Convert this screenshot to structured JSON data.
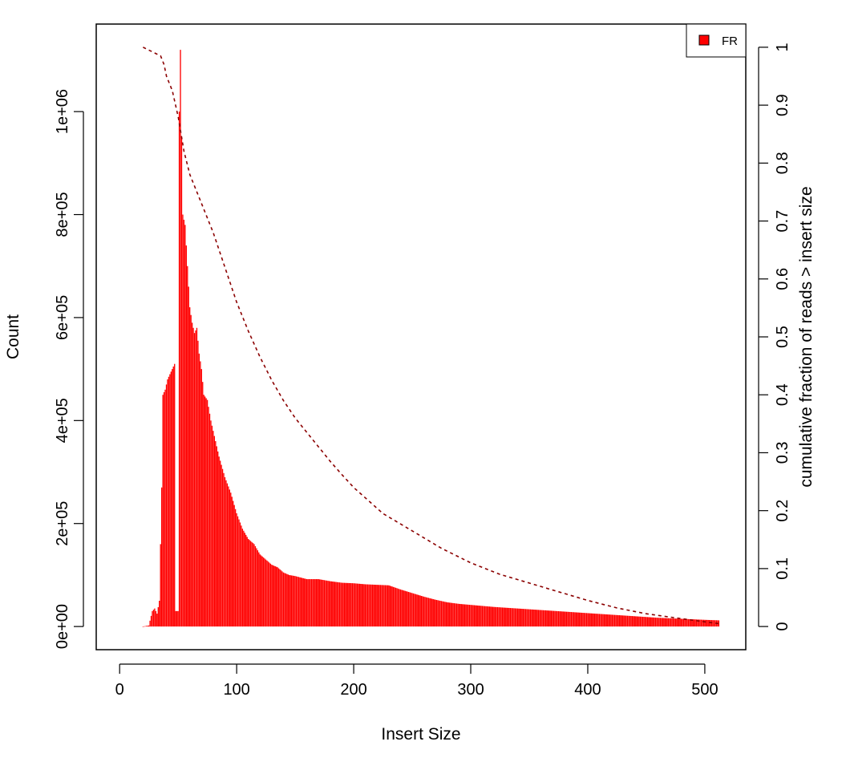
{
  "chart_data": {
    "type": "bar",
    "title": "",
    "xlabel": "Insert Size",
    "ylabel": "Count",
    "y2label": "cumulative fraction of reads > insert size",
    "xlim": [
      -20,
      535
    ],
    "ylim": [
      -45000,
      1170000
    ],
    "y2lim": [
      -0.04,
      1.04
    ],
    "x_ticks": [
      0,
      100,
      200,
      300,
      400,
      500
    ],
    "x_tick_labels": [
      "0",
      "100",
      "200",
      "300",
      "400",
      "500"
    ],
    "y_ticks": [
      0,
      200000,
      400000,
      600000,
      800000,
      1000000
    ],
    "y_tick_labels": [
      "0e+00",
      "2e+05",
      "4e+05",
      "6e+05",
      "8e+05",
      "1e+06"
    ],
    "y2_ticks": [
      0,
      0.1,
      0.2,
      0.3,
      0.4,
      0.5,
      0.6,
      0.7,
      0.8,
      0.9,
      1
    ],
    "y2_tick_labels": [
      "0",
      "0.1",
      "0.2",
      "0.3",
      "0.4",
      "0.5",
      "0.6",
      "0.7",
      "0.8",
      "0.9",
      "1"
    ],
    "grid": false,
    "legend_position": "top-right",
    "series": [
      {
        "name": "FR",
        "kind": "bars",
        "color": "#ff0000",
        "points": [
          [
            20,
            0
          ],
          [
            25,
            2000
          ],
          [
            28,
            30000
          ],
          [
            30,
            35000
          ],
          [
            32,
            25000
          ],
          [
            34,
            50000
          ],
          [
            36,
            270000
          ],
          [
            37,
            450000
          ],
          [
            39,
            460000
          ],
          [
            41,
            480000
          ],
          [
            43,
            490000
          ],
          [
            45,
            500000
          ],
          [
            47,
            510000
          ],
          [
            48,
            30000
          ],
          [
            50,
            30000
          ],
          [
            51,
            1000000
          ],
          [
            52,
            1120000
          ],
          [
            53,
            950000
          ],
          [
            54,
            800000
          ],
          [
            56,
            780000
          ],
          [
            58,
            700000
          ],
          [
            60,
            620000
          ],
          [
            62,
            590000
          ],
          [
            64,
            570000
          ],
          [
            66,
            580000
          ],
          [
            68,
            530000
          ],
          [
            70,
            500000
          ],
          [
            72,
            450000
          ],
          [
            75,
            440000
          ],
          [
            78,
            400000
          ],
          [
            80,
            380000
          ],
          [
            85,
            330000
          ],
          [
            90,
            290000
          ],
          [
            95,
            260000
          ],
          [
            100,
            220000
          ],
          [
            105,
            190000
          ],
          [
            110,
            170000
          ],
          [
            115,
            160000
          ],
          [
            120,
            140000
          ],
          [
            125,
            130000
          ],
          [
            130,
            120000
          ],
          [
            135,
            115000
          ],
          [
            140,
            105000
          ],
          [
            145,
            100000
          ],
          [
            150,
            98000
          ],
          [
            155,
            95000
          ],
          [
            160,
            92000
          ],
          [
            170,
            92000
          ],
          [
            180,
            88000
          ],
          [
            190,
            85000
          ],
          [
            200,
            84000
          ],
          [
            210,
            82000
          ],
          [
            220,
            81000
          ],
          [
            230,
            80000
          ],
          [
            240,
            72000
          ],
          [
            250,
            65000
          ],
          [
            260,
            58000
          ],
          [
            270,
            52000
          ],
          [
            280,
            47000
          ],
          [
            290,
            44000
          ],
          [
            300,
            42000
          ],
          [
            320,
            38000
          ],
          [
            340,
            35000
          ],
          [
            360,
            32000
          ],
          [
            380,
            29000
          ],
          [
            400,
            26000
          ],
          [
            420,
            23000
          ],
          [
            440,
            20000
          ],
          [
            460,
            17000
          ],
          [
            480,
            15000
          ],
          [
            500,
            13000
          ],
          [
            512,
            12000
          ]
        ]
      },
      {
        "name": "",
        "kind": "cumulative-dashed-line",
        "axis": "right",
        "color": "#8b0000",
        "points": [
          [
            20,
            1.0
          ],
          [
            30,
            0.99
          ],
          [
            35,
            0.985
          ],
          [
            38,
            0.97
          ],
          [
            40,
            0.95
          ],
          [
            45,
            0.925
          ],
          [
            50,
            0.88
          ],
          [
            55,
            0.82
          ],
          [
            60,
            0.78
          ],
          [
            70,
            0.73
          ],
          [
            80,
            0.68
          ],
          [
            90,
            0.62
          ],
          [
            100,
            0.56
          ],
          [
            110,
            0.51
          ],
          [
            120,
            0.465
          ],
          [
            130,
            0.425
          ],
          [
            140,
            0.39
          ],
          [
            150,
            0.36
          ],
          [
            160,
            0.335
          ],
          [
            170,
            0.31
          ],
          [
            180,
            0.285
          ],
          [
            190,
            0.262
          ],
          [
            200,
            0.24
          ],
          [
            225,
            0.195
          ],
          [
            250,
            0.165
          ],
          [
            275,
            0.135
          ],
          [
            300,
            0.11
          ],
          [
            325,
            0.09
          ],
          [
            350,
            0.075
          ],
          [
            375,
            0.06
          ],
          [
            400,
            0.045
          ],
          [
            425,
            0.032
          ],
          [
            450,
            0.022
          ],
          [
            475,
            0.015
          ],
          [
            500,
            0.008
          ],
          [
            512,
            0.005
          ]
        ]
      }
    ]
  }
}
